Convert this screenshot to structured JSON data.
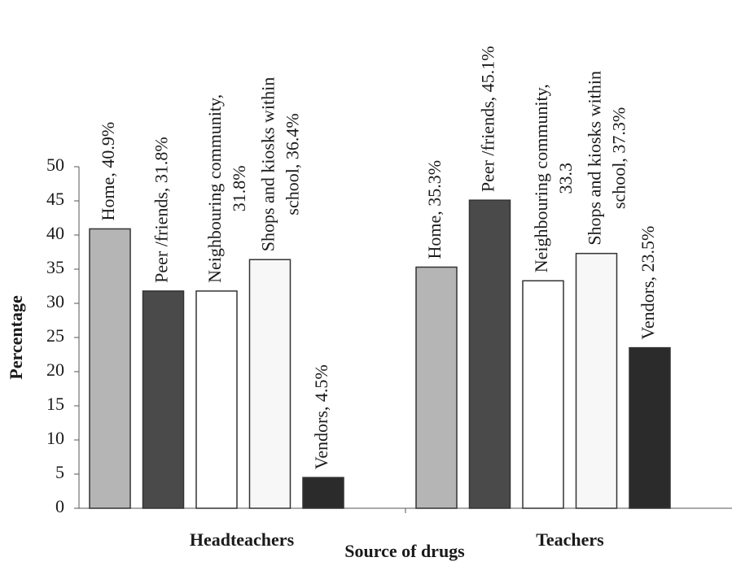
{
  "chart_data": {
    "type": "bar",
    "x_label": "Source of drugs",
    "y_label": "Percentage",
    "categories": [
      "Headteachers",
      "Teachers"
    ],
    "series": [
      {
        "color": "#b5b5b5",
        "values": [
          40.9,
          35.3
        ],
        "value_labels": [
          [
            "Home, 40.9%"
          ],
          [
            "Home, 35.3%"
          ]
        ]
      },
      {
        "color": "#4a4a4a",
        "values": [
          31.8,
          45.1
        ],
        "value_labels": [
          [
            "Peer /friends, 31.8%"
          ],
          [
            "Peer /friends, 45.1%"
          ]
        ]
      },
      {
        "color": "#ffffff",
        "values": [
          31.8,
          33.3
        ],
        "value_labels": [
          [
            "Neighbouring community,",
            "31.8%"
          ],
          [
            "Neighbouring community,",
            "33.3"
          ]
        ]
      },
      {
        "color": "#f7f7f7",
        "values": [
          36.4,
          37.3
        ],
        "value_labels": [
          [
            "Shops and kiosks within",
            "school, 36.4%"
          ],
          [
            "Shops and kiosks within",
            "school, 37.3%"
          ]
        ]
      },
      {
        "color": "#2b2b2b",
        "values": [
          4.5,
          23.5
        ],
        "value_labels": [
          [
            "Vendors, 4.5%"
          ],
          [
            "Vendors, 23.5%"
          ]
        ]
      }
    ],
    "ylim": [
      0,
      50
    ],
    "yticks": [
      0,
      5,
      10,
      15,
      20,
      25,
      30,
      35,
      40,
      45,
      50
    ]
  }
}
